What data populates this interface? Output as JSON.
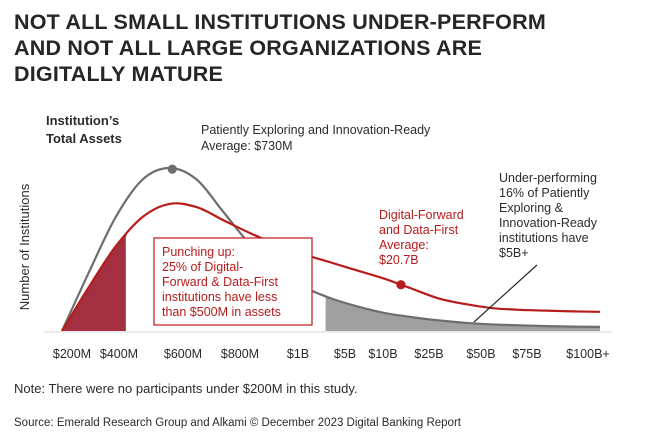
{
  "header": {
    "title_lines": [
      "NOT ALL SMALL INSTITUTIONS UNDER-PERFORM",
      "AND NOT ALL LARGE ORGANIZATIONS ARE",
      "DIGITALLY MATURE"
    ]
  },
  "chart_data": {
    "type": "area",
    "title": "NOT ALL SMALL INSTITUTIONS UNDER-PERFORM AND NOT ALL LARGE ORGANIZATIONS ARE DIGITALLY MATURE",
    "xlabel_lines": [
      "Institution’s",
      "Total Assets"
    ],
    "ylabel": "Number of Institutions",
    "x_ticks": [
      "$200M",
      "$400M",
      "$600M",
      "$800M",
      "$1B",
      "$5B",
      "$10B",
      "$25B",
      "$50B",
      "$75B",
      "$100B+"
    ],
    "grid": false,
    "legend": "none",
    "series": [
      {
        "name": "Patiently Exploring and Innovation-Ready",
        "color": "#6e6e6e",
        "x": [
          0,
          0.5,
          1,
          1.5,
          2,
          2.5,
          3,
          3.5,
          4,
          4.5,
          5,
          5.5,
          6,
          6.5,
          7,
          7.5,
          8,
          8.5,
          9,
          9.5,
          10
        ],
        "y": [
          0,
          0.36,
          0.7,
          0.93,
          1.0,
          0.93,
          0.73,
          0.53,
          0.38,
          0.27,
          0.2,
          0.15,
          0.11,
          0.085,
          0.065,
          0.05,
          0.04,
          0.035,
          0.03,
          0.027,
          0.025
        ],
        "average_marker_x": 2.05
      },
      {
        "name": "Digital-Forward and Data-First",
        "color": "#b71c1c",
        "x": [
          0,
          0.5,
          1,
          1.5,
          2,
          2.5,
          3,
          3.5,
          4,
          4.5,
          5,
          5.5,
          6,
          6.5,
          7,
          7.5,
          8,
          8.5,
          9,
          9.5,
          10
        ],
        "y": [
          0,
          0.27,
          0.52,
          0.7,
          0.78,
          0.76,
          0.68,
          0.6,
          0.53,
          0.47,
          0.42,
          0.37,
          0.32,
          0.26,
          0.2,
          0.165,
          0.14,
          0.13,
          0.125,
          0.12,
          0.118
        ],
        "average_marker_x": 6.3
      }
    ],
    "shaded_regions": [
      {
        "series": "Digital-Forward and Data-First",
        "from_x": 0,
        "to_x": 1.2,
        "color": "#a33040"
      },
      {
        "series": "Patiently Exploring and Innovation-Ready",
        "from_x": 4.9,
        "to_x": 10,
        "color": "#a0a0a0"
      }
    ],
    "annotations": {
      "gray_avg": [
        "Patiently Exploring and Innovation-Ready",
        "Average: $730M"
      ],
      "red_avg": [
        "Digital-Forward",
        "and Data-First",
        "Average:",
        "$20.7B"
      ],
      "under": [
        "Under-performing",
        "16% of Patiently",
        "Exploring &",
        "Innovation-Ready",
        "institutions have",
        "$5B+"
      ],
      "punch": [
        "Punching up:",
        "25% of Digital-",
        "Forward & Data-First",
        "institutions have less",
        "than $500M in assets"
      ]
    }
  },
  "footer": {
    "note": "Note: There were no participants under $200M in this study.",
    "source": "Source: Emerald Research Group and Alkami © December 2023 Digital Banking Report"
  }
}
